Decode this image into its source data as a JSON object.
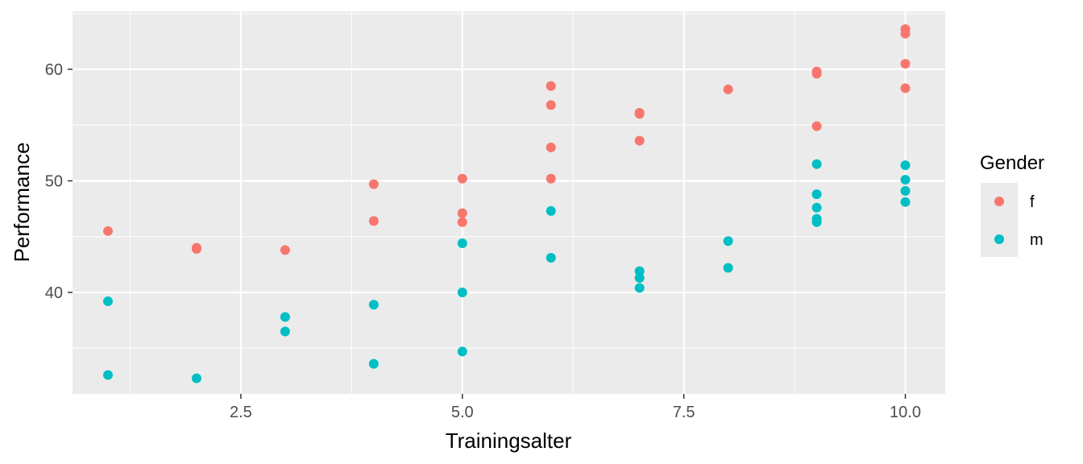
{
  "chart_data": {
    "type": "scatter",
    "xlabel": "Trainingsalter",
    "ylabel": "Performance",
    "xlim": [
      0.6,
      10.45
    ],
    "ylim": [
      30.9,
      65.2
    ],
    "x_ticks": [
      2.5,
      5.0,
      7.5,
      10.0
    ],
    "x_tick_labels": [
      "2.5",
      "5.0",
      "7.5",
      "10.0"
    ],
    "y_ticks": [
      40,
      50,
      60
    ],
    "y_tick_labels": [
      "40",
      "50",
      "60"
    ],
    "grid": true,
    "legend": {
      "title": "Gender",
      "position": "right"
    },
    "series": [
      {
        "name": "f",
        "color": "#F8766D",
        "points": [
          [
            1,
            45.5
          ],
          [
            2,
            44.0
          ],
          [
            2,
            43.9
          ],
          [
            3,
            43.8
          ],
          [
            4,
            49.7
          ],
          [
            4,
            46.4
          ],
          [
            5,
            50.2
          ],
          [
            5,
            47.1
          ],
          [
            5,
            46.3
          ],
          [
            6,
            58.5
          ],
          [
            6,
            56.8
          ],
          [
            6,
            53.0
          ],
          [
            6,
            50.2
          ],
          [
            7,
            56.1
          ],
          [
            7,
            56.0
          ],
          [
            7,
            53.6
          ],
          [
            8,
            58.2
          ],
          [
            9,
            59.8
          ],
          [
            9,
            59.6
          ],
          [
            9,
            54.9
          ],
          [
            10,
            63.6
          ],
          [
            10,
            63.2
          ],
          [
            10,
            60.5
          ],
          [
            10,
            58.3
          ]
        ]
      },
      {
        "name": "m",
        "color": "#00BFC4",
        "points": [
          [
            1,
            39.2
          ],
          [
            1,
            32.6
          ],
          [
            2,
            32.3
          ],
          [
            3,
            37.8
          ],
          [
            3,
            36.5
          ],
          [
            4,
            38.9
          ],
          [
            4,
            33.6
          ],
          [
            5,
            44.4
          ],
          [
            5,
            40.0
          ],
          [
            5,
            34.7
          ],
          [
            6,
            47.3
          ],
          [
            6,
            43.1
          ],
          [
            7,
            41.9
          ],
          [
            7,
            41.3
          ],
          [
            7,
            40.4
          ],
          [
            8,
            44.6
          ],
          [
            8,
            42.2
          ],
          [
            9,
            51.5
          ],
          [
            9,
            48.8
          ],
          [
            9,
            47.6
          ],
          [
            9,
            46.6
          ],
          [
            9,
            46.3
          ],
          [
            10,
            51.4
          ],
          [
            10,
            50.1
          ],
          [
            10,
            49.1
          ],
          [
            10,
            48.1
          ]
        ]
      }
    ]
  }
}
